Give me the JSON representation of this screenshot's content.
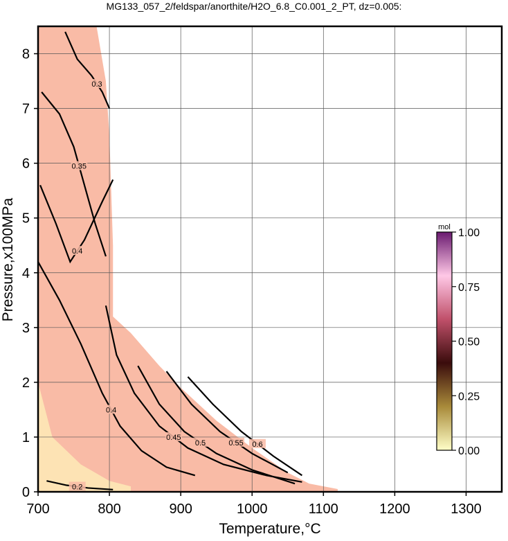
{
  "chart_data": {
    "type": "contour",
    "title": "MG133_057_2/feldspar/anorthite/H2O_6.8_C0.001_2_PT, dz=0.005:",
    "x_label": "Temperature,°C",
    "y_label": "Pressure,x100MPa",
    "xlim": [
      700,
      1350
    ],
    "ylim": [
      0,
      8.5
    ],
    "xticks": [
      700,
      800,
      900,
      1000,
      1100,
      1200,
      1300
    ],
    "yticks": [
      0,
      1,
      2,
      3,
      4,
      5,
      6,
      7,
      8
    ],
    "grid": true,
    "field": {
      "color": "#f9bba6",
      "x": [
        700,
        700,
        782,
        795,
        800,
        805,
        805,
        830,
        870,
        900,
        950,
        1000,
        1050,
        1080,
        1120,
        1120
      ],
      "y": [
        0,
        8.5,
        8.5,
        7.5,
        6.5,
        4.5,
        3.2,
        2.9,
        2.3,
        1.9,
        1.3,
        0.8,
        0.35,
        0.15,
        0.05,
        0
      ]
    },
    "low_field": {
      "color": "#fde3b4",
      "x": [
        700,
        700,
        720,
        760,
        800,
        830,
        830
      ],
      "y": [
        0,
        2.0,
        1.0,
        0.5,
        0.2,
        0.1,
        0
      ]
    },
    "contours": [
      {
        "level": 0.3,
        "x": [
          738,
          755,
          775,
          790,
          800
        ],
        "y": [
          8.4,
          7.9,
          7.6,
          7.3,
          7.0
        ]
      },
      {
        "level": 0.35,
        "x": [
          705,
          730,
          750,
          765,
          780,
          795
        ],
        "y": [
          7.3,
          6.9,
          6.3,
          5.6,
          4.9,
          4.3
        ]
      },
      {
        "level": 0.4,
        "x": [
          703,
          725,
          745,
          765,
          790,
          805
        ],
        "y": [
          5.6,
          4.9,
          4.2,
          4.6,
          5.3,
          5.7
        ]
      },
      {
        "level": 0.4,
        "x": [
          700,
          730,
          760,
          790,
          815,
          845,
          880,
          920
        ],
        "y": [
          4.2,
          3.5,
          2.7,
          1.8,
          1.2,
          0.75,
          0.45,
          0.3
        ]
      },
      {
        "level": 0.45,
        "x": [
          795,
          810,
          835,
          870,
          910,
          960,
          1020,
          1070
        ],
        "y": [
          3.4,
          2.5,
          1.8,
          1.2,
          0.8,
          0.5,
          0.3,
          0.18
        ]
      },
      {
        "level": 0.5,
        "x": [
          840,
          870,
          905,
          950,
          1000,
          1060
        ],
        "y": [
          2.3,
          1.6,
          1.1,
          0.7,
          0.4,
          0.15
        ]
      },
      {
        "level": 0.55,
        "x": [
          880,
          915,
          955,
          1000,
          1050
        ],
        "y": [
          2.2,
          1.6,
          1.1,
          0.7,
          0.35
        ]
      },
      {
        "level": 0.6,
        "x": [
          910,
          945,
          985,
          1030,
          1070
        ],
        "y": [
          2.1,
          1.6,
          1.1,
          0.65,
          0.3
        ]
      },
      {
        "level": 0.2,
        "x": [
          712,
          740,
          770,
          805
        ],
        "y": [
          0.2,
          0.12,
          0.07,
          0.04
        ]
      }
    ],
    "colorbar": {
      "unit": "mol",
      "lim": [
        0,
        1
      ],
      "ticks": [
        {
          "value": 0,
          "label": "0.00"
        },
        {
          "value": 0.25,
          "label": "0.25"
        },
        {
          "value": 0.5,
          "label": "0.50"
        },
        {
          "value": 0.75,
          "label": "0.75"
        },
        {
          "value": 1,
          "label": "1.00"
        }
      ],
      "colors": [
        "#ffffc8",
        "#a88a3a",
        "#3a0c0c",
        "#c0506a",
        "#ffc8e6",
        "#6a1a70"
      ]
    }
  }
}
